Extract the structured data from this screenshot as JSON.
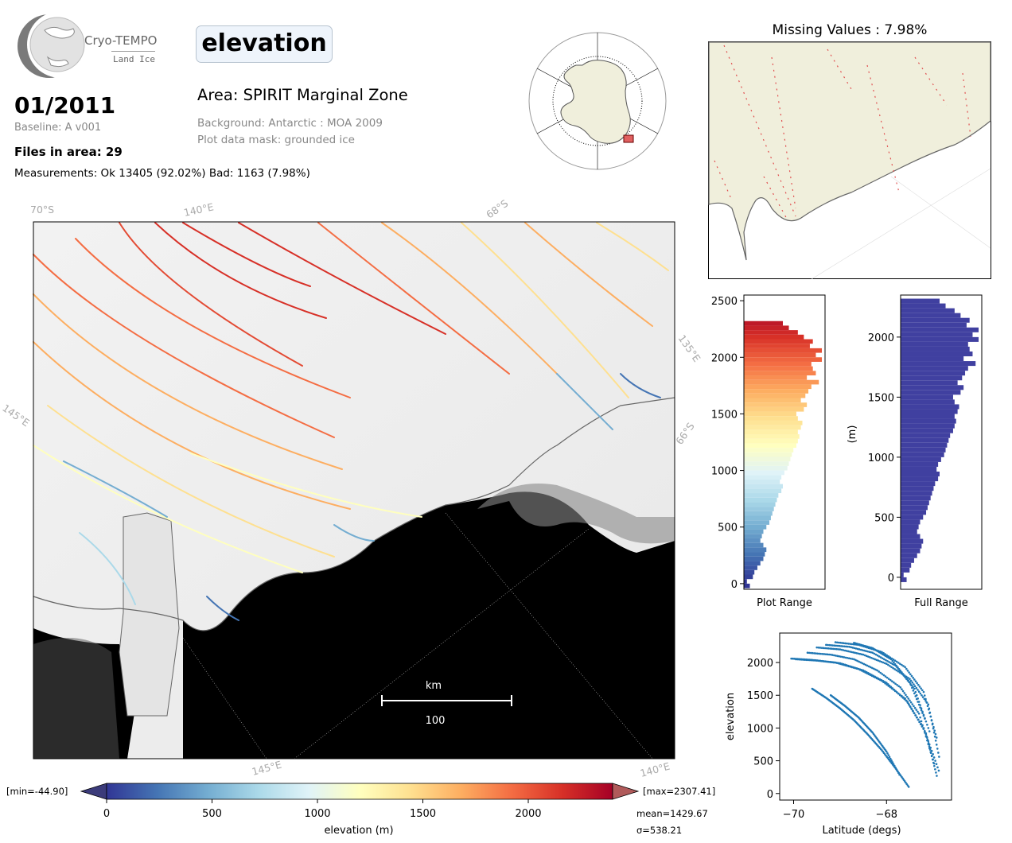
{
  "header": {
    "logo_name": "Cryo-TEMPO",
    "logo_sub": "Land Ice",
    "parameter": "elevation",
    "date": "01/2011",
    "baseline": "Baseline: A v001",
    "files_in_area": "Files in area: 29",
    "measurements": "Measurements: Ok 13405 (92.02%) Bad: 1163 (7.98%)",
    "area": "Area: SPIRIT Marginal Zone",
    "background": "Background: Antarctic : MOA 2009",
    "plot_mask": "Plot data mask: grounded ice"
  },
  "missing_panel": {
    "title": "Missing Values : 7.98%"
  },
  "main_map": {
    "grid_labels": [
      "70°S",
      "140°E",
      "68°S",
      "135°E",
      "145°E",
      "66°S",
      "145°E",
      "140°E"
    ],
    "scalebar_unit": "km",
    "scalebar_value": "100"
  },
  "colorbar": {
    "min_label": "[min=-44.90]",
    "max_label": "[max=2307.41]",
    "ticks": [
      "0",
      "500",
      "1000",
      "1500",
      "2000"
    ],
    "label": "elevation (m)",
    "mean": "mean=1429.67",
    "sigma": "σ=538.21",
    "colors": [
      "#313695",
      "#4575b4",
      "#74add1",
      "#abd9e9",
      "#e0f3f8",
      "#ffffbf",
      "#fee090",
      "#fdae61",
      "#f46d43",
      "#d73027",
      "#a50026"
    ]
  },
  "chart_data": [
    {
      "type": "bar",
      "orientation": "horizontal",
      "xlabel": "Plot Range",
      "ylabel": "",
      "ylim": [
        -50,
        2550
      ],
      "yticks": [
        "0",
        "500",
        "1000",
        "1500",
        "2000",
        "2500"
      ],
      "bin_width": 40,
      "bins": [
        -40,
        0,
        40,
        80,
        120,
        160,
        200,
        240,
        280,
        320,
        360,
        400,
        440,
        480,
        520,
        560,
        600,
        640,
        680,
        720,
        760,
        800,
        840,
        880,
        920,
        960,
        1000,
        1040,
        1080,
        1120,
        1160,
        1200,
        1240,
        1280,
        1320,
        1360,
        1400,
        1440,
        1480,
        1520,
        1560,
        1600,
        1640,
        1680,
        1720,
        1760,
        1800,
        1840,
        1880,
        1920,
        1960,
        2000,
        2040,
        2080,
        2120,
        2160,
        2200,
        2240,
        2280
      ],
      "counts": [
        8,
        4,
        12,
        14,
        18,
        22,
        26,
        28,
        30,
        26,
        22,
        24,
        26,
        30,
        34,
        36,
        38,
        40,
        42,
        44,
        46,
        50,
        52,
        48,
        50,
        54,
        58,
        60,
        62,
        64,
        66,
        70,
        72,
        74,
        72,
        76,
        78,
        72,
        70,
        80,
        84,
        76,
        82,
        86,
        90,
        100,
        84,
        96,
        92,
        90,
        104,
        96,
        104,
        88,
        92,
        80,
        72,
        60,
        52
      ],
      "colors_by_value": true
    },
    {
      "type": "bar",
      "orientation": "horizontal",
      "xlabel": "Full Range",
      "ylabel": "(m)",
      "ylim": [
        -100,
        2350
      ],
      "yticks": [
        "0",
        "500",
        "1000",
        "1500",
        "2000"
      ],
      "bin_width": 40,
      "bins": [
        -40,
        0,
        40,
        80,
        120,
        160,
        200,
        240,
        280,
        320,
        360,
        400,
        440,
        480,
        520,
        560,
        600,
        640,
        680,
        720,
        760,
        800,
        840,
        880,
        920,
        960,
        1000,
        1040,
        1080,
        1120,
        1160,
        1200,
        1240,
        1280,
        1320,
        1360,
        1400,
        1440,
        1480,
        1520,
        1560,
        1600,
        1640,
        1680,
        1720,
        1760,
        1800,
        1840,
        1880,
        1920,
        1960,
        2000,
        2040,
        2080,
        2120,
        2160,
        2200,
        2240,
        2280
      ],
      "counts": [
        8,
        4,
        12,
        14,
        18,
        22,
        26,
        28,
        30,
        26,
        22,
        24,
        26,
        30,
        34,
        36,
        38,
        40,
        42,
        44,
        46,
        50,
        52,
        48,
        50,
        54,
        58,
        60,
        62,
        64,
        66,
        70,
        72,
        74,
        72,
        76,
        78,
        72,
        70,
        80,
        84,
        76,
        82,
        86,
        90,
        100,
        84,
        96,
        92,
        90,
        104,
        96,
        104,
        88,
        92,
        80,
        72,
        60,
        52
      ],
      "color": "#4040a0"
    },
    {
      "type": "scatter",
      "xlabel": "Latitude (degs)",
      "ylabel": "elevation",
      "xlim": [
        -70.3,
        -66.6
      ],
      "ylim": [
        -100,
        2450
      ],
      "xticks": [
        -70,
        -68
      ],
      "xtick_labels": [
        "−70",
        "−68"
      ],
      "yticks": [
        0,
        500,
        1000,
        1500,
        2000
      ],
      "color": "#1f77b4",
      "tracks": [
        {
          "x": [
            -70.05,
            -69.6,
            -69.1,
            -68.6,
            -68.1,
            -67.6,
            -67.2,
            -66.85
          ],
          "y": [
            2060,
            2040,
            2000,
            1900,
            1720,
            1450,
            1000,
            300
          ]
        },
        {
          "x": [
            -69.95,
            -69.5,
            -69.0,
            -68.5,
            -68.0,
            -67.55,
            -67.15,
            -66.9
          ],
          "y": [
            2050,
            2030,
            1990,
            1880,
            1690,
            1400,
            920,
            220
          ]
        },
        {
          "x": [
            -69.7,
            -69.2,
            -68.7,
            -68.2,
            -67.7,
            -67.3,
            -66.95
          ],
          "y": [
            2150,
            2120,
            2050,
            1880,
            1620,
            1220,
            400
          ]
        },
        {
          "x": [
            -69.5,
            -69.0,
            -68.5,
            -68.0,
            -67.5,
            -67.1,
            -66.85
          ],
          "y": [
            2230,
            2200,
            2120,
            1980,
            1750,
            1360,
            500
          ]
        },
        {
          "x": [
            -69.3,
            -68.8,
            -68.3,
            -67.8,
            -67.4,
            -67.05
          ],
          "y": [
            2270,
            2240,
            2150,
            1950,
            1600,
            900
          ]
        },
        {
          "x": [
            -69.1,
            -68.6,
            -68.1,
            -67.6,
            -67.2,
            -66.9
          ],
          "y": [
            2310,
            2270,
            2160,
            1930,
            1550,
            800
          ]
        },
        {
          "x": [
            -68.7,
            -68.3,
            -67.9,
            -67.5,
            -67.15
          ],
          "y": [
            2300,
            2220,
            2050,
            1700,
            1100
          ]
        },
        {
          "x": [
            -69.6,
            -69.3,
            -69.0,
            -68.7,
            -68.4,
            -68.1,
            -67.8,
            -67.5
          ],
          "y": [
            1600,
            1460,
            1300,
            1120,
            900,
            660,
            380,
            80
          ]
        },
        {
          "x": [
            -69.2,
            -68.9,
            -68.6,
            -68.3,
            -68.0,
            -67.7
          ],
          "y": [
            1500,
            1340,
            1160,
            930,
            640,
            260
          ]
        }
      ]
    }
  ]
}
